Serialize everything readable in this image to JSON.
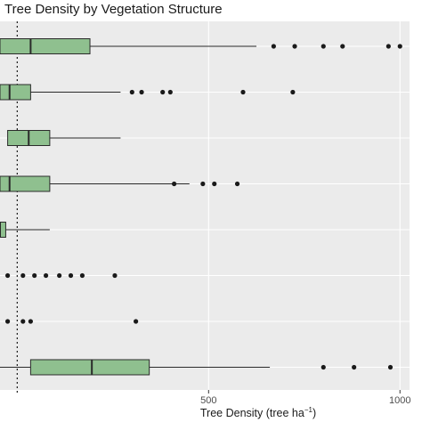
{
  "chart_data": {
    "type": "boxplot",
    "orientation": "horizontal",
    "title": "Tree Density by Vegetation Structure",
    "xlabel_main": "Tree Density (tree ha",
    "xlabel_sup": "−1",
    "xlabel_close": ")",
    "ylabel": "",
    "x_ticks": [
      500,
      1000
    ],
    "x_tick_labels": [
      "500",
      "1000"
    ],
    "xlim": [
      -45,
      1025
    ],
    "reference_line": {
      "x": 0,
      "style": "dotted"
    },
    "grid": true,
    "legend": "none",
    "colors": {
      "panel_bg": "#ebebeb",
      "grid_major": "#ffffff",
      "box_fill": "#8fc08f",
      "box_stroke": "#2b2b2b",
      "outlier": "#1a1a1a"
    },
    "boxes": [
      {
        "min": -45,
        "q1": -45,
        "median": 35,
        "q3": 190,
        "max": 625,
        "outliers": [
          670,
          725,
          800,
          850,
          970,
          1000
        ]
      },
      {
        "min": -45,
        "q1": -45,
        "median": -20,
        "q3": 35,
        "max": 270,
        "outliers": [
          300,
          325,
          380,
          400,
          590,
          720
        ]
      },
      {
        "min": -25,
        "q1": -25,
        "median": 30,
        "q3": 85,
        "max": 270,
        "outliers": []
      },
      {
        "min": -45,
        "q1": -45,
        "median": -20,
        "q3": 85,
        "max": 450,
        "outliers": [
          410,
          485,
          515,
          575
        ]
      },
      {
        "min": -45,
        "q1": -45,
        "median": -45,
        "q3": -30,
        "max": 85,
        "outliers": []
      },
      {
        "min": null,
        "q1": null,
        "median": null,
        "q3": null,
        "max": null,
        "outliers": [
          -25,
          15,
          45,
          75,
          110,
          140,
          170,
          255
        ]
      },
      {
        "min": null,
        "q1": null,
        "median": null,
        "q3": null,
        "max": null,
        "outliers": [
          -25,
          15,
          35,
          310
        ]
      },
      {
        "min": -45,
        "q1": 35,
        "median": 195,
        "q3": 345,
        "max": 660,
        "outliers": [
          800,
          880,
          975
        ]
      }
    ]
  }
}
